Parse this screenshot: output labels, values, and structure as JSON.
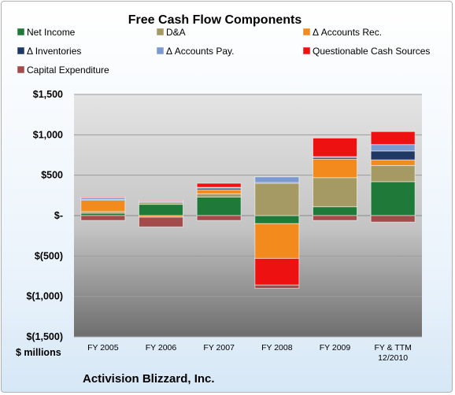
{
  "chart_data": {
    "type": "bar",
    "stacked": true,
    "title": "Free Cash Flow Components",
    "unit_label": "$ millions",
    "company": "Activision Blizzard, Inc.",
    "categories": [
      "FY 2005",
      "FY 2006",
      "FY 2007",
      "FY 2008",
      "FY 2009",
      "FY & TTM|12/2010"
    ],
    "ylim": [
      -1500,
      1500
    ],
    "yticks": [
      1500,
      1000,
      500,
      0,
      -500,
      -1000,
      -1500
    ],
    "ytick_labels": [
      "$1,500",
      "$1,000",
      "$500",
      "$-",
      "$(500)",
      "$(1,000)",
      "$(1,500)"
    ],
    "grid": true,
    "legend_position": "top",
    "series": [
      {
        "name": "Net Income",
        "color": "#1f7a3a",
        "values": [
          30,
          140,
          230,
          -100,
          110,
          420
        ]
      },
      {
        "name": "D&A",
        "color": "#a59a63",
        "values": [
          20,
          20,
          40,
          400,
          360,
          200
        ]
      },
      {
        "name": "Δ Accounts Rec.",
        "color": "#f28a1e",
        "values": [
          140,
          -20,
          50,
          -430,
          230,
          70
        ]
      },
      {
        "name": "Δ Inventories",
        "color": "#1f3864",
        "values": [
          10,
          10,
          20,
          10,
          20,
          110
        ]
      },
      {
        "name": "Δ Accounts Pay.",
        "color": "#7b9ad0",
        "values": [
          20,
          10,
          10,
          70,
          10,
          80
        ]
      },
      {
        "name": "Questionable Cash Sources",
        "color": "#ee1111",
        "values": [
          10,
          10,
          50,
          -330,
          230,
          160
        ]
      },
      {
        "name": "Capital Expenditure",
        "color": "#a34a4a",
        "values": [
          -60,
          -120,
          -60,
          -40,
          -60,
          -80
        ]
      }
    ]
  }
}
